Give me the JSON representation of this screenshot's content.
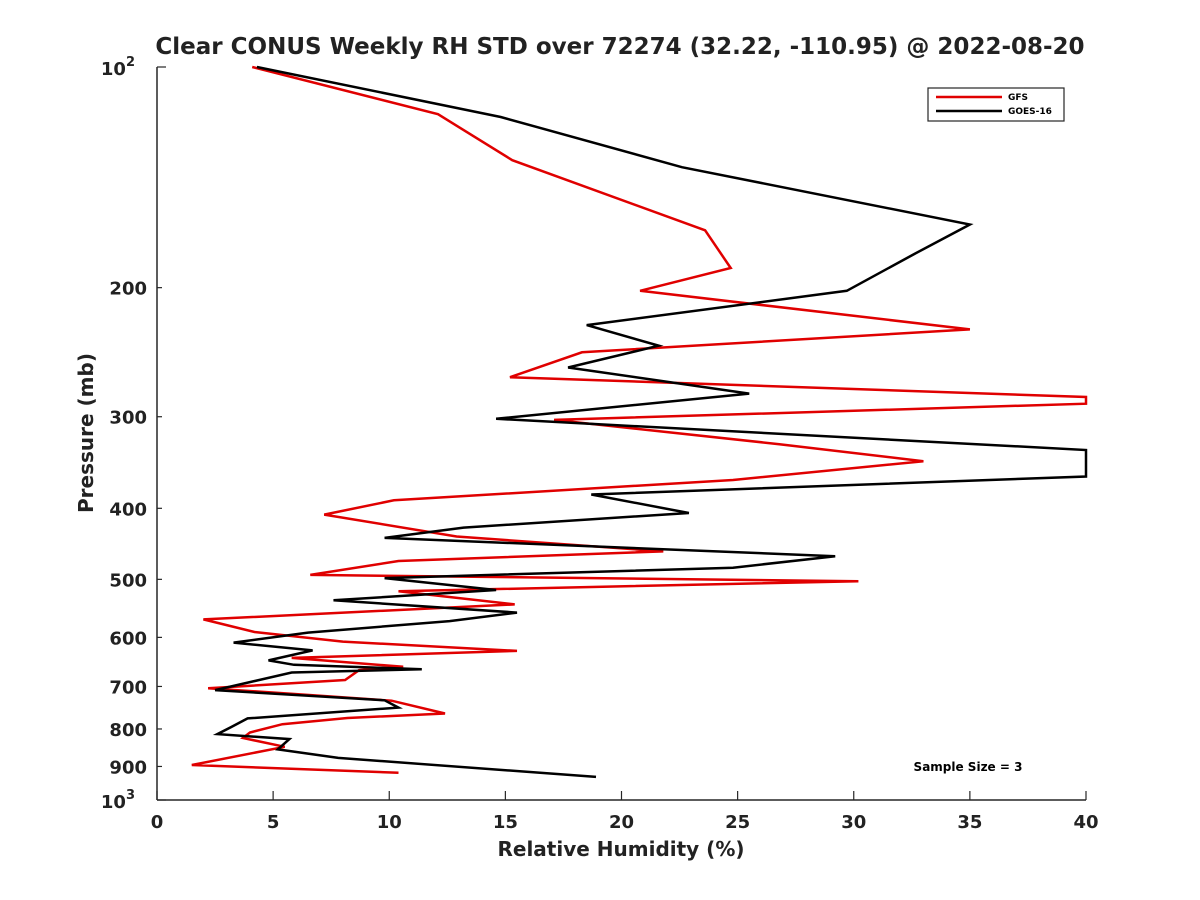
{
  "chart_data": {
    "type": "line",
    "title": "Clear CONUS Weekly RH STD over 72274 (32.22, -110.95) @ 2022-08-20",
    "xlabel": "Relative Humidity (%)",
    "ylabel": "Pressure (mb)",
    "xlim": [
      0,
      40
    ],
    "ylim": [
      100,
      1000
    ],
    "y_scale": "log",
    "y_reversed": true,
    "grid": false,
    "legend_position": "top-right",
    "x_ticks": [
      0,
      5,
      10,
      15,
      20,
      25,
      30,
      35,
      40
    ],
    "y_ticks": [
      {
        "value": 100,
        "base": "10",
        "exp": "2"
      },
      {
        "value": 200,
        "label": "200"
      },
      {
        "value": 300,
        "label": "300"
      },
      {
        "value": 400,
        "label": "400"
      },
      {
        "value": 500,
        "label": "500"
      },
      {
        "value": 600,
        "label": "600"
      },
      {
        "value": 700,
        "label": "700"
      },
      {
        "value": 800,
        "label": "800"
      },
      {
        "value": 900,
        "label": "900"
      },
      {
        "value": 1000,
        "base": "10",
        "exp": "3"
      }
    ],
    "annotation": "Sample Size = 3",
    "series": [
      {
        "name": "GFS",
        "color": "#e00000",
        "points": [
          [
            4.1,
            100
          ],
          [
            12.1,
            116
          ],
          [
            15.3,
            134
          ],
          [
            23.6,
            167
          ],
          [
            24.7,
            188
          ],
          [
            20.8,
            202
          ],
          [
            35.0,
            228
          ],
          [
            18.3,
            245
          ],
          [
            15.2,
            265
          ],
          [
            40.0,
            282
          ],
          [
            40.0,
            288
          ],
          [
            17.1,
            303
          ],
          [
            26.8,
            327
          ],
          [
            33.0,
            345
          ],
          [
            24.8,
            366
          ],
          [
            10.2,
            390
          ],
          [
            7.2,
            408
          ],
          [
            12.9,
            437
          ],
          [
            21.8,
            458
          ],
          [
            10.4,
            472
          ],
          [
            6.6,
            493
          ],
          [
            30.2,
            503
          ],
          [
            10.4,
            519
          ],
          [
            15.4,
            541
          ],
          [
            2.0,
            567
          ],
          [
            4.2,
            590
          ],
          [
            8.0,
            608
          ],
          [
            15.5,
            626
          ],
          [
            5.8,
            640
          ],
          [
            10.6,
            658
          ],
          [
            8.7,
            665
          ],
          [
            8.1,
            686
          ],
          [
            2.2,
            704
          ],
          [
            6.0,
            717
          ],
          [
            10.1,
            732
          ],
          [
            12.4,
            762
          ],
          [
            8.2,
            773
          ],
          [
            5.4,
            788
          ],
          [
            4.0,
            809
          ],
          [
            3.7,
            823
          ],
          [
            5.5,
            846
          ],
          [
            1.5,
            896
          ],
          [
            10.4,
            918
          ]
        ]
      },
      {
        "name": "GOES-16",
        "color": "#000000",
        "points": [
          [
            4.3,
            100
          ],
          [
            14.8,
            117
          ],
          [
            22.6,
            137
          ],
          [
            35.0,
            164
          ],
          [
            32.6,
            180
          ],
          [
            29.7,
            202
          ],
          [
            18.5,
            225
          ],
          [
            21.6,
            240
          ],
          [
            17.7,
            257
          ],
          [
            25.5,
            279
          ],
          [
            14.6,
            302
          ],
          [
            40.0,
            333
          ],
          [
            40.0,
            362
          ],
          [
            18.7,
            383
          ],
          [
            22.9,
            406
          ],
          [
            13.2,
            425
          ],
          [
            9.8,
            439
          ],
          [
            29.2,
            465
          ],
          [
            24.8,
            482
          ],
          [
            9.8,
            498
          ],
          [
            14.6,
            517
          ],
          [
            7.6,
            534
          ],
          [
            15.5,
            555
          ],
          [
            12.6,
            570
          ],
          [
            6.5,
            591
          ],
          [
            3.3,
            610
          ],
          [
            6.7,
            625
          ],
          [
            4.8,
            645
          ],
          [
            5.9,
            654
          ],
          [
            11.4,
            663
          ],
          [
            5.8,
            670
          ],
          [
            2.5,
            708
          ],
          [
            9.8,
            731
          ],
          [
            10.4,
            748
          ],
          [
            3.9,
            774
          ],
          [
            3.2,
            795
          ],
          [
            2.6,
            813
          ],
          [
            5.7,
            826
          ],
          [
            5.2,
            853
          ],
          [
            7.8,
            876
          ],
          [
            18.9,
            930
          ]
        ]
      }
    ]
  }
}
